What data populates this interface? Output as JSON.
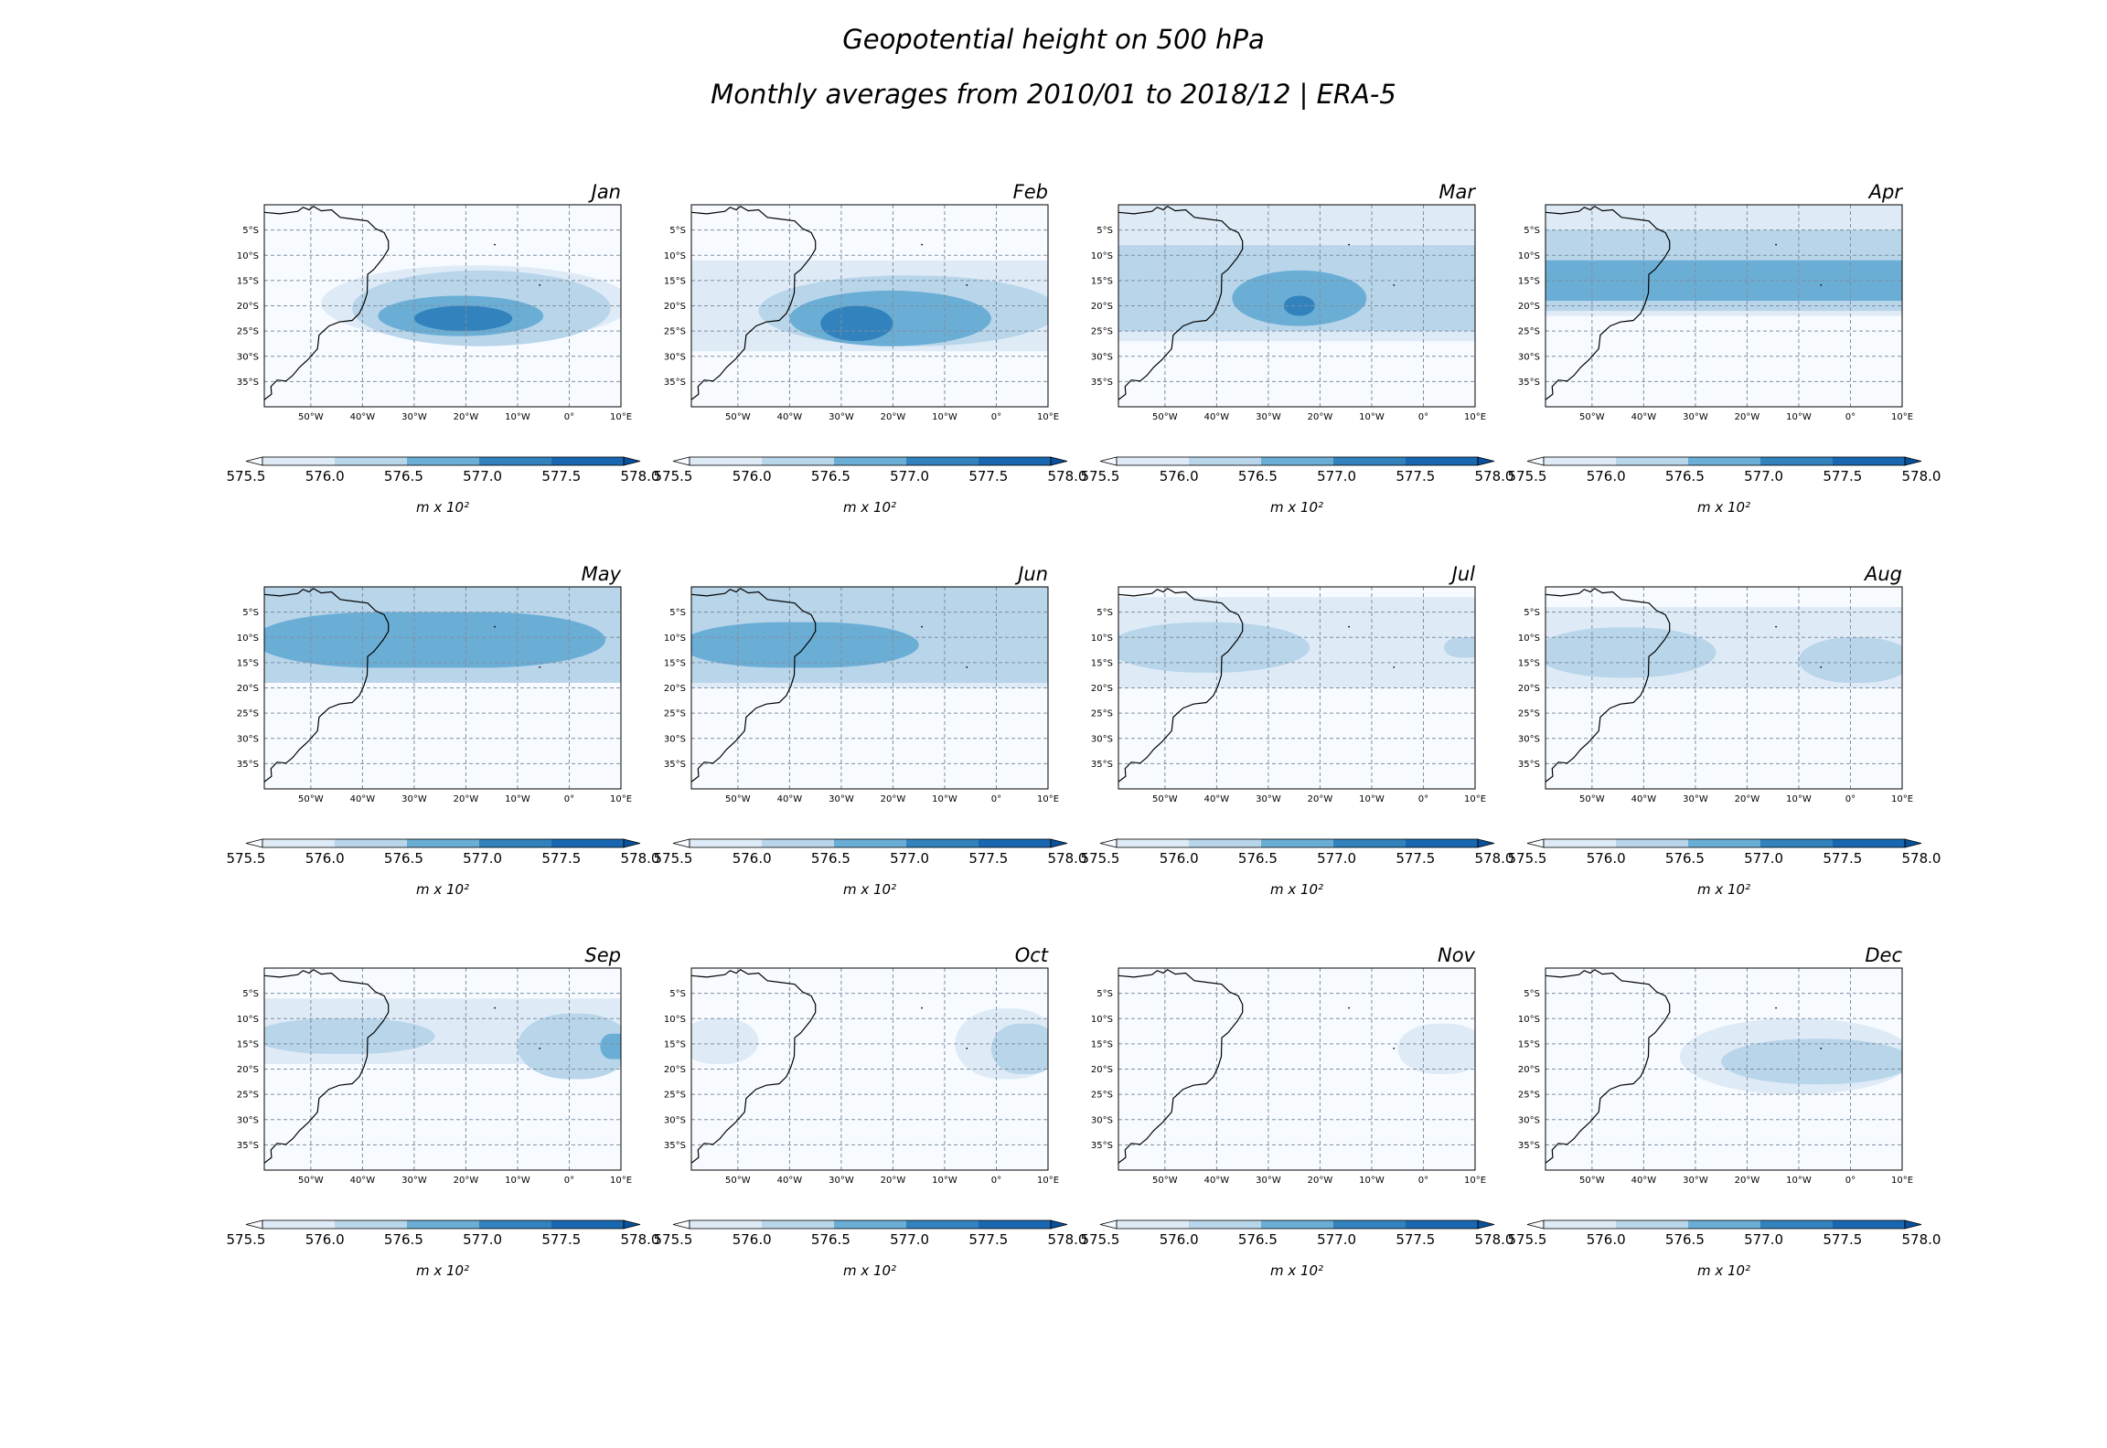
{
  "figure": {
    "title": "Geopotential height on 500 hPa",
    "subtitle": "Monthly averages from 2010/01 to 2018/12 | ERA-5"
  },
  "colors": {
    "levels": [
      "#f7fbff",
      "#deebf7",
      "#b8d5ea",
      "#6aaed6",
      "#3182bd",
      "#1967b0",
      "#08519c"
    ],
    "coast": "#000000",
    "grid": "#7f8fa0"
  },
  "chart_data": {
    "type": "heatmap",
    "map_extent": {
      "lon": [
        -59,
        10
      ],
      "lat": [
        -40,
        0
      ]
    },
    "lon_ticks": [
      "50°W",
      "40°W",
      "30°W",
      "20°W",
      "10°W",
      "0°",
      "10°E"
    ],
    "lat_ticks": [
      "5°S",
      "10°S",
      "15°S",
      "20°S",
      "25°S",
      "30°S",
      "35°S"
    ],
    "lon_tick_values": [
      -50,
      -40,
      -30,
      -20,
      -10,
      0,
      10
    ],
    "lat_tick_values": [
      -5,
      -10,
      -15,
      -20,
      -25,
      -30,
      -35
    ],
    "grid": true,
    "colorbar": {
      "ticks": [
        "575.5",
        "576.0",
        "576.5",
        "577.0",
        "577.5",
        "578.0"
      ],
      "label": "m x 10²",
      "extend": "both"
    },
    "panels": [
      {
        "month": "Jan",
        "features": [
          {
            "level": 1,
            "lon": [
              -48,
              10
            ],
            "lat": [
              -27,
              -12
            ]
          },
          {
            "level": 2,
            "lon": [
              -42,
              8
            ],
            "lat": [
              -28,
              -13
            ]
          },
          {
            "level": 3,
            "lon": [
              -37,
              -5
            ],
            "lat": [
              -26,
              -18
            ]
          },
          {
            "level": 4,
            "lon": [
              -30,
              -11
            ],
            "lat": [
              -25,
              -20
            ]
          }
        ]
      },
      {
        "month": "Feb",
        "features": [
          {
            "level": 1,
            "lon": [
              -59,
              10
            ],
            "lat": [
              -29,
              -11
            ]
          },
          {
            "level": 2,
            "lon": [
              -46,
              10
            ],
            "lat": [
              -28,
              -14
            ]
          },
          {
            "level": 3,
            "lon": [
              -40,
              -1
            ],
            "lat": [
              -28,
              -17
            ]
          },
          {
            "level": 4,
            "lon": [
              -34,
              -20
            ],
            "lat": [
              -27,
              -20
            ]
          }
        ]
      },
      {
        "month": "Mar",
        "features": [
          {
            "level": 1,
            "lon": [
              -59,
              10
            ],
            "lat": [
              -27,
              0
            ]
          },
          {
            "level": 2,
            "lon": [
              -59,
              10
            ],
            "lat": [
              -25,
              -8
            ]
          },
          {
            "level": 3,
            "lon": [
              -37,
              -11
            ],
            "lat": [
              -24,
              -13
            ]
          },
          {
            "level": 4,
            "lon": [
              -27,
              -21
            ],
            "lat": [
              -22,
              -18
            ]
          }
        ]
      },
      {
        "month": "Apr",
        "features": [
          {
            "level": 1,
            "lon": [
              -59,
              10
            ],
            "lat": [
              -22,
              0
            ]
          },
          {
            "level": 2,
            "lon": [
              -59,
              10
            ],
            "lat": [
              -21,
              -5
            ]
          },
          {
            "level": 3,
            "lon": [
              -59,
              10
            ],
            "lat": [
              -19,
              -11
            ]
          }
        ]
      },
      {
        "month": "May",
        "features": [
          {
            "level": 2,
            "lon": [
              -59,
              10
            ],
            "lat": [
              -19,
              0
            ]
          },
          {
            "level": 3,
            "lon": [
              -59,
              7
            ],
            "lat": [
              -16,
              -5
            ]
          }
        ]
      },
      {
        "month": "Jun",
        "features": [
          {
            "level": 1,
            "lon": [
              -59,
              10
            ],
            "lat": [
              -20,
              0
            ]
          },
          {
            "level": 2,
            "lon": [
              -59,
              10
            ],
            "lat": [
              -19,
              0
            ]
          },
          {
            "level": 3,
            "lon": [
              -59,
              -15
            ],
            "lat": [
              -16,
              -7
            ]
          }
        ]
      },
      {
        "month": "Jul",
        "features": [
          {
            "level": 1,
            "lon": [
              -59,
              10
            ],
            "lat": [
              -20,
              -2
            ]
          },
          {
            "level": 2,
            "lon": [
              -59,
              -22
            ],
            "lat": [
              -17,
              -7
            ]
          },
          {
            "level": 2,
            "lon": [
              4,
              10
            ],
            "lat": [
              -14,
              -10
            ]
          }
        ]
      },
      {
        "month": "Aug",
        "features": [
          {
            "level": 1,
            "lon": [
              -59,
              10
            ],
            "lat": [
              -20,
              -4
            ]
          },
          {
            "level": 2,
            "lon": [
              -59,
              -26
            ],
            "lat": [
              -18,
              -8
            ]
          },
          {
            "level": 2,
            "lon": [
              -10,
              10
            ],
            "lat": [
              -19,
              -10
            ]
          }
        ]
      },
      {
        "month": "Sep",
        "features": [
          {
            "level": 1,
            "lon": [
              -59,
              10
            ],
            "lat": [
              -19,
              -6
            ]
          },
          {
            "level": 2,
            "lon": [
              -59,
              -26
            ],
            "lat": [
              -17,
              -10
            ]
          },
          {
            "level": 2,
            "lon": [
              -10,
              10
            ],
            "lat": [
              -22,
              -9
            ]
          },
          {
            "level": 3,
            "lon": [
              6,
              10
            ],
            "lat": [
              -18,
              -13
            ]
          }
        ]
      },
      {
        "month": "Oct",
        "features": [
          {
            "level": 1,
            "lon": [
              -59,
              -46
            ],
            "lat": [
              -19,
              -10
            ]
          },
          {
            "level": 1,
            "lon": [
              -8,
              10
            ],
            "lat": [
              -22,
              -8
            ]
          },
          {
            "level": 2,
            "lon": [
              -1,
              10
            ],
            "lat": [
              -21,
              -11
            ]
          }
        ]
      },
      {
        "month": "Nov",
        "features": [
          {
            "level": 1,
            "lon": [
              -5,
              10
            ],
            "lat": [
              -21,
              -11
            ]
          }
        ]
      },
      {
        "month": "Dec",
        "features": [
          {
            "level": 1,
            "lon": [
              -33,
              10
            ],
            "lat": [
              -25,
              -10
            ]
          },
          {
            "level": 2,
            "lon": [
              -25,
              10
            ],
            "lat": [
              -23,
              -14
            ]
          }
        ]
      }
    ]
  }
}
